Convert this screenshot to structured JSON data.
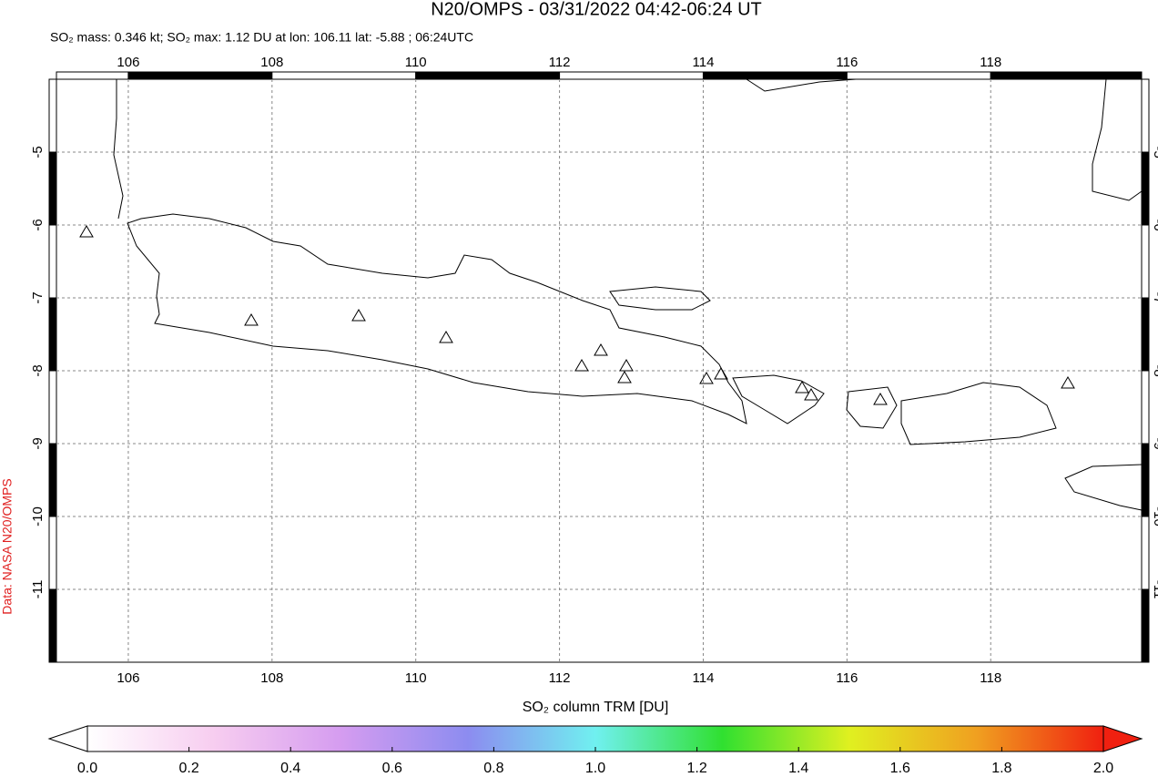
{
  "chart_data": {
    "type": "map",
    "title": "N20/OMPS - 03/31/2022 04:42-06:24 UT",
    "subtitle": "SO₂ mass: 0.346 kt; SO₂ max: 1.12 DU at lon: 106.11 lat: -5.88 ; 06:24UTC",
    "credit": "Data: NASA N20/OMPS",
    "xlim": [
      105,
      120.1
    ],
    "ylim": [
      -12,
      -4
    ],
    "xticks": [
      106,
      108,
      110,
      112,
      114,
      116,
      118
    ],
    "yticks": [
      -5,
      -6,
      -7,
      -8,
      -9,
      -10,
      -11
    ],
    "grid": true,
    "colorbar": {
      "label": "SO₂ column TRM [DU]",
      "lim": [
        0,
        2
      ],
      "ticks": [
        {
          "value": 0,
          "label": "0.0"
        },
        0.2,
        0.4,
        0.6,
        0.8,
        {
          "value": 1,
          "label": "1.0"
        },
        1.2,
        1.4,
        1.6,
        1.8,
        {
          "value": 2,
          "label": "2.0"
        }
      ],
      "colors": [
        "#ffffff",
        "#f7cdf0",
        "#d59cf0",
        "#8c8cf0",
        "#70f0f0",
        "#30e030",
        "#e0f020",
        "#f0a020",
        "#f02010"
      ]
    }
  }
}
